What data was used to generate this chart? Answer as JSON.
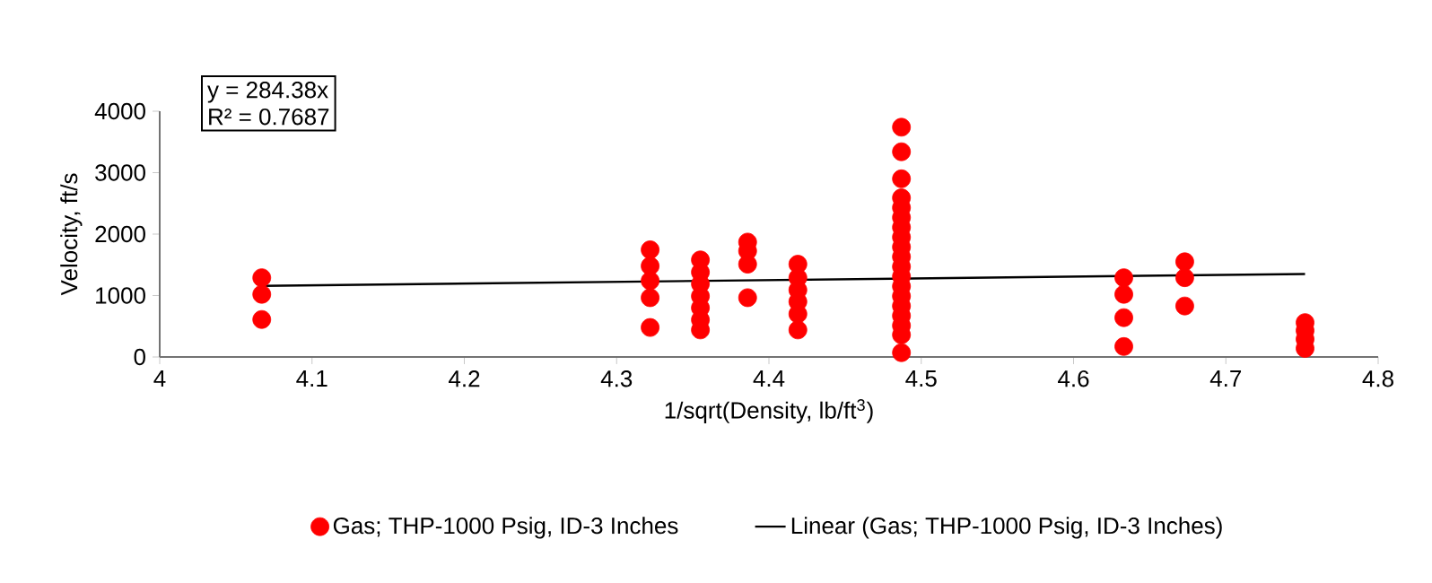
{
  "chart_data": {
    "type": "scatter",
    "xlabel": "1/sqrt(Density, lb/ft$^{3}$)",
    "ylabel": "Velocity, ft/s",
    "xlim": [
      4,
      4.8
    ],
    "xticks": [
      4,
      4.1,
      4.2,
      4.3,
      4.4,
      4.5,
      4.6,
      4.7,
      4.8
    ],
    "ylim": [
      0,
      4000
    ],
    "yticks": [
      0,
      1000,
      2000,
      3000,
      4000
    ],
    "grid": false,
    "legend": "bottom",
    "annotations": [
      "y = 284.38x",
      "R² = 0.7687"
    ],
    "series": [
      {
        "name": "Gas; THP-1000 Psig, ID-3 Inches",
        "marker": "circle",
        "color": "#ff0000",
        "x": [
          4.067,
          4.067,
          4.067,
          4.322,
          4.322,
          4.322,
          4.322,
          4.322,
          4.355,
          4.355,
          4.355,
          4.355,
          4.355,
          4.355,
          4.355,
          4.386,
          4.386,
          4.386,
          4.386,
          4.419,
          4.419,
          4.419,
          4.419,
          4.419,
          4.419,
          4.487,
          4.487,
          4.487,
          4.487,
          4.487,
          4.487,
          4.487,
          4.487,
          4.487,
          4.487,
          4.487,
          4.487,
          4.487,
          4.487,
          4.487,
          4.487,
          4.487,
          4.487,
          4.487,
          4.633,
          4.633,
          4.633,
          4.633,
          4.673,
          4.673,
          4.673,
          4.752,
          4.752,
          4.752,
          4.752
        ],
        "values": [
          1290,
          1020,
          610,
          1745,
          1480,
          1240,
          965,
          480,
          1580,
          1380,
          1190,
          990,
          800,
          605,
          440,
          1870,
          1725,
          1510,
          965,
          1510,
          1290,
          1090,
          900,
          700,
          440,
          3740,
          3340,
          2900,
          2590,
          2430,
          2270,
          2110,
          1950,
          1790,
          1630,
          1470,
          1310,
          1150,
          990,
          830,
          670,
          510,
          360,
          70,
          1290,
          1020,
          640,
          170,
          1550,
          1290,
          830,
          560,
          430,
          290,
          140
        ]
      },
      {
        "name": "Linear (Gas; THP-1000 Psig, ID-3 Inches)",
        "type": "line",
        "marker": "none",
        "line_style": "solid",
        "color": "#000000",
        "x": [
          4.067,
          4.752
        ],
        "values": [
          1157,
          1351
        ]
      }
    ]
  }
}
